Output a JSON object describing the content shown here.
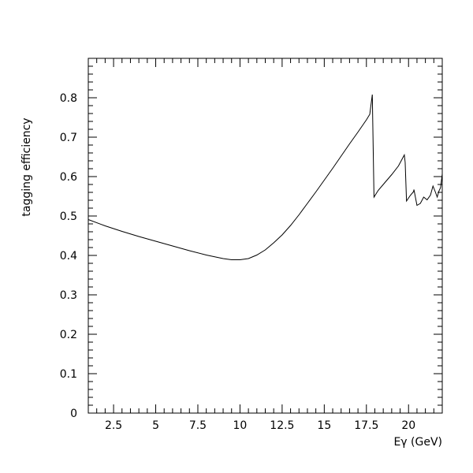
{
  "chart_data": {
    "type": "line",
    "title": "",
    "xlabel": "Eγ (GeV)",
    "ylabel": "tagging efficiency",
    "xlim": [
      1.0,
      22.0
    ],
    "ylim": [
      0.0,
      0.9
    ],
    "x_ticks": [
      2.5,
      5,
      7.5,
      10,
      12.5,
      15,
      17.5,
      20
    ],
    "x_tick_labels": [
      "2.5",
      "5",
      "7.5",
      "10",
      "12.5",
      "15",
      "17.5",
      "20"
    ],
    "y_ticks": [
      0,
      0.1,
      0.2,
      0.3,
      0.4,
      0.5,
      0.6,
      0.7,
      0.8
    ],
    "y_tick_labels": [
      "0",
      "0.1",
      "0.2",
      "0.3",
      "0.4",
      "0.5",
      "0.6",
      "0.7",
      "0.8"
    ],
    "grid": false,
    "legend": "none",
    "line_color": "#000000",
    "series": [
      {
        "x": [
          1.0,
          2.0,
          3.0,
          4.0,
          5.0,
          6.0,
          7.0,
          8.0,
          9.0,
          9.5,
          10.0,
          10.5,
          11.0,
          11.5,
          12.0,
          12.5,
          13.0,
          13.5,
          14.0,
          14.5,
          15.0,
          15.5,
          16.0,
          16.5,
          17.0,
          17.5,
          17.7,
          17.85,
          17.95,
          18.2,
          18.6,
          19.0,
          19.4,
          19.75,
          19.8,
          19.88,
          20.1,
          20.3,
          20.32,
          20.5,
          20.7,
          20.9,
          21.1,
          21.3,
          21.45,
          21.6,
          21.7,
          21.8,
          21.9,
          22.0
        ],
        "y": [
          0.491,
          0.475,
          0.461,
          0.448,
          0.436,
          0.424,
          0.412,
          0.401,
          0.392,
          0.389,
          0.389,
          0.392,
          0.401,
          0.414,
          0.432,
          0.452,
          0.476,
          0.503,
          0.532,
          0.561,
          0.591,
          0.621,
          0.652,
          0.683,
          0.713,
          0.744,
          0.758,
          0.808,
          0.548,
          0.565,
          0.585,
          0.605,
          0.627,
          0.655,
          0.636,
          0.538,
          0.552,
          0.562,
          0.567,
          0.527,
          0.532,
          0.548,
          0.541,
          0.553,
          0.576,
          0.56,
          0.548,
          0.563,
          0.572,
          0.607
        ]
      }
    ]
  }
}
